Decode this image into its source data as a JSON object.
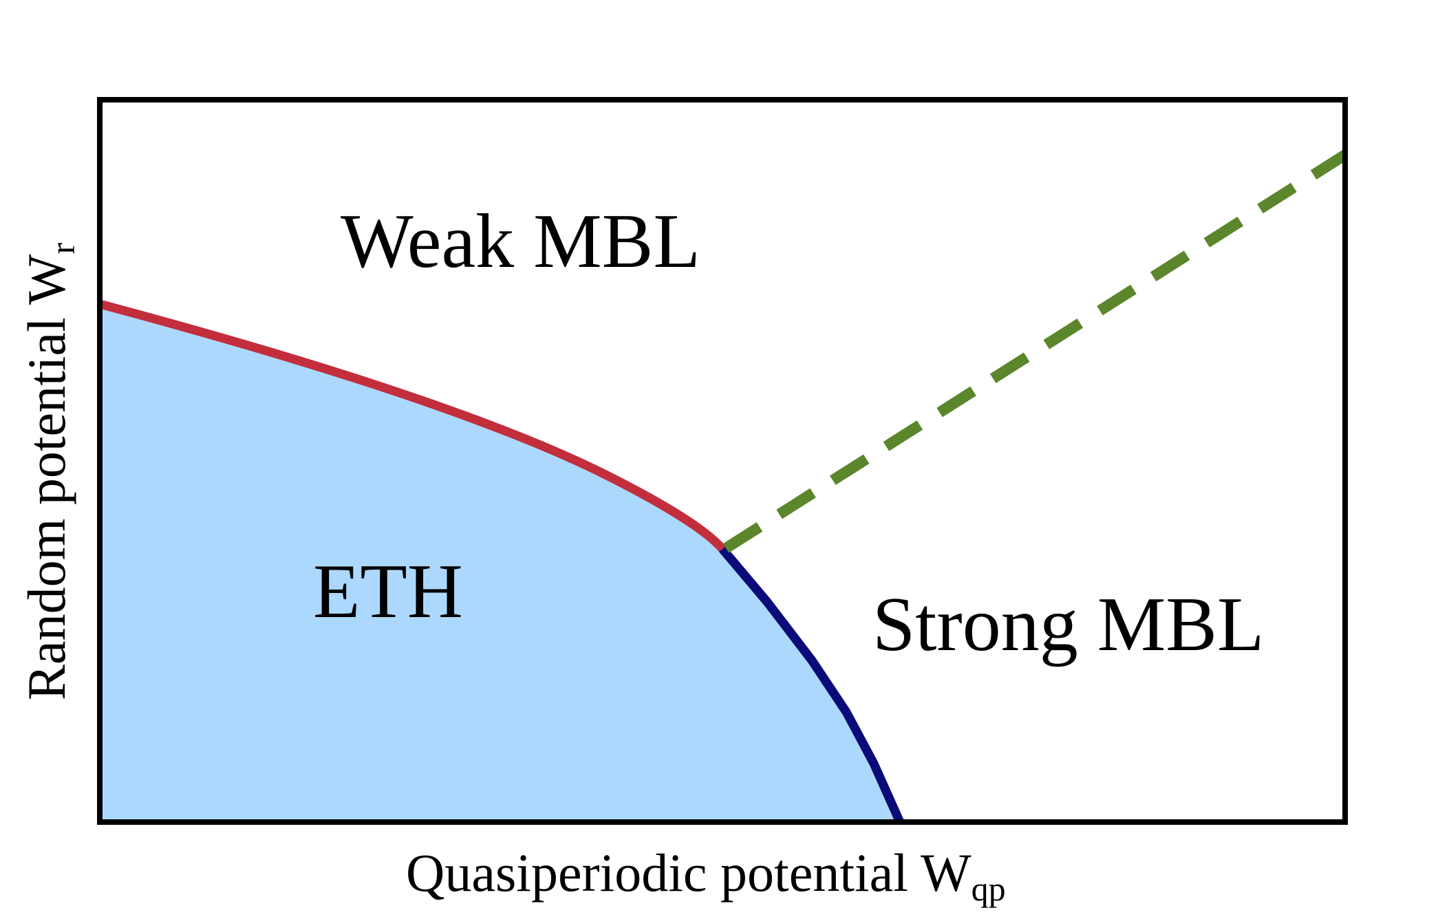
{
  "diagram": {
    "type": "phase-diagram",
    "axes": {
      "x": {
        "label": "Quasiperiodic potential W",
        "subscript": "qp"
      },
      "y": {
        "label": "Random potential W",
        "subscript": "r"
      }
    },
    "regions": {
      "eth": "ETH",
      "weak_mbl": "Weak MBL",
      "strong_mbl": "Strong MBL"
    },
    "colors": {
      "eth_fill": "#add8fd",
      "eth_weak_boundary": "#c22e3c",
      "eth_strong_boundary": "#0a0a78",
      "weak_strong_boundary": "#5b862c",
      "frame": "#000000"
    },
    "line_styles": {
      "eth_weak_boundary": "solid",
      "eth_strong_boundary": "solid",
      "weak_strong_boundary": "dashed"
    }
  }
}
